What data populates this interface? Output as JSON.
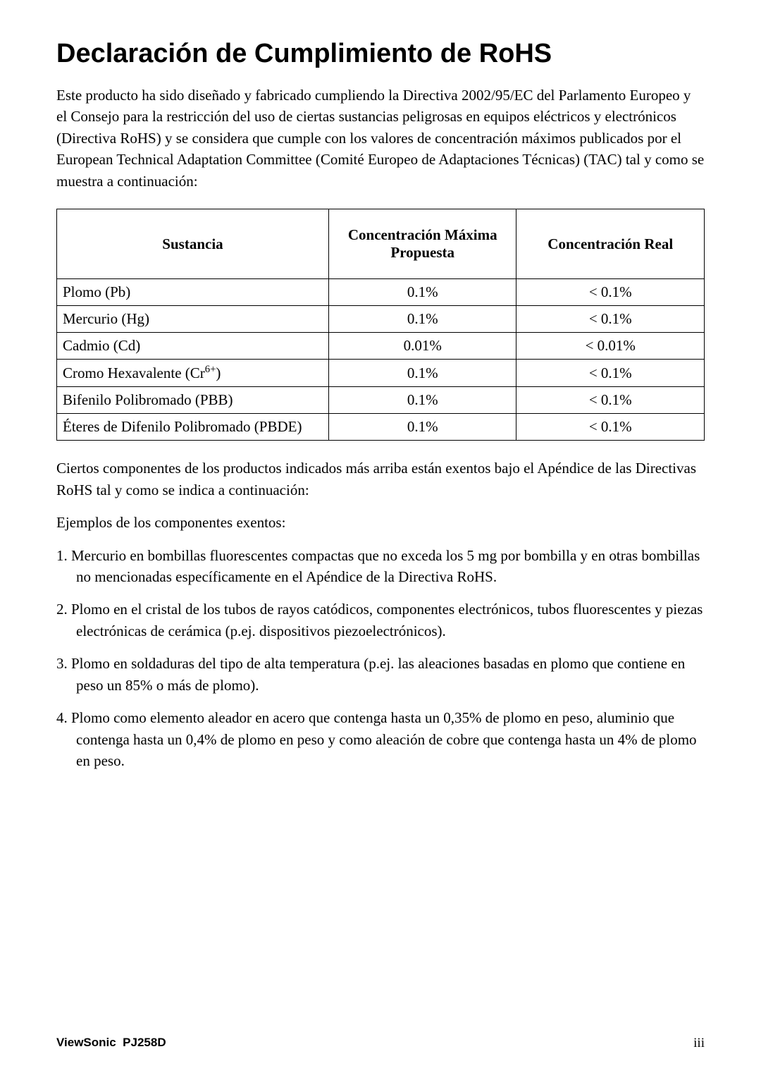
{
  "title": "Declaración de Cumplimiento de RoHS",
  "intro": "Este producto ha sido diseñado y fabricado cumpliendo la Directiva 2002/95/EC del Parlamento Europeo y el Consejo para la restricción del uso de ciertas sustancias peligrosas en equipos eléctricos y electrónicos (Directiva RoHS) y se considera que cumple con los valores de concentración máximos publicados por el European Technical Adaptation Committee (Comité Europeo de Adaptaciones Técnicas) (TAC) tal y como se muestra a continuación:",
  "table": {
    "headers": {
      "substance": "Sustancia",
      "proposed": "Concentración Máxima Propuesta",
      "actual": "Concentración Real"
    },
    "rows": [
      {
        "substance_html": "Plomo (Pb)",
        "proposed": "0.1%",
        "actual": "< 0.1%"
      },
      {
        "substance_html": "Mercurio (Hg)",
        "proposed": "0.1%",
        "actual": "< 0.1%"
      },
      {
        "substance_html": "Cadmio (Cd)",
        "proposed": "0.01%",
        "actual": "< 0.01%"
      },
      {
        "substance_html": "Cromo Hexavalente (Cr<sup>6+</sup>)",
        "proposed": "0.1%",
        "actual": "< 0.1%"
      },
      {
        "substance_html": "Bifenilo Polibromado (PBB)",
        "proposed": "0.1%",
        "actual": "< 0.1%"
      },
      {
        "substance_html": "Éteres de Difenilo Polibromado (PBDE)",
        "proposed": "0.1%",
        "actual": "< 0.1%"
      }
    ]
  },
  "para_after_table": "Ciertos componentes de los productos indicados más arriba están exentos bajo el Apéndice de las Directivas RoHS tal y como se indica a continuación:",
  "examples_intro": "Ejemplos de los componentes exentos:",
  "list_items": [
    "1. Mercurio en bombillas fluorescentes compactas que no exceda los 5 mg por bombilla y en otras bombillas no mencionadas específicamente en el Apéndice de la Directiva RoHS.",
    "2. Plomo en el cristal de los tubos de rayos catódicos, componentes electrónicos, tubos fluorescentes y piezas electrónicas de cerámica (p.ej. dispositivos piezoelectrónicos).",
    "3. Plomo en soldaduras del tipo de alta temperatura (p.ej. las aleaciones basadas en plomo que contiene en peso un 85% o más de plomo).",
    "4. Plomo como elemento aleador en acero que contenga hasta un 0,35% de plomo en peso, aluminio que contenga hasta un 0,4% de plomo en peso y como aleación de cobre que contenga hasta un 4% de plomo en peso."
  ],
  "footer": {
    "brand": "ViewSonic",
    "model": "PJ258D",
    "page": "iii"
  }
}
